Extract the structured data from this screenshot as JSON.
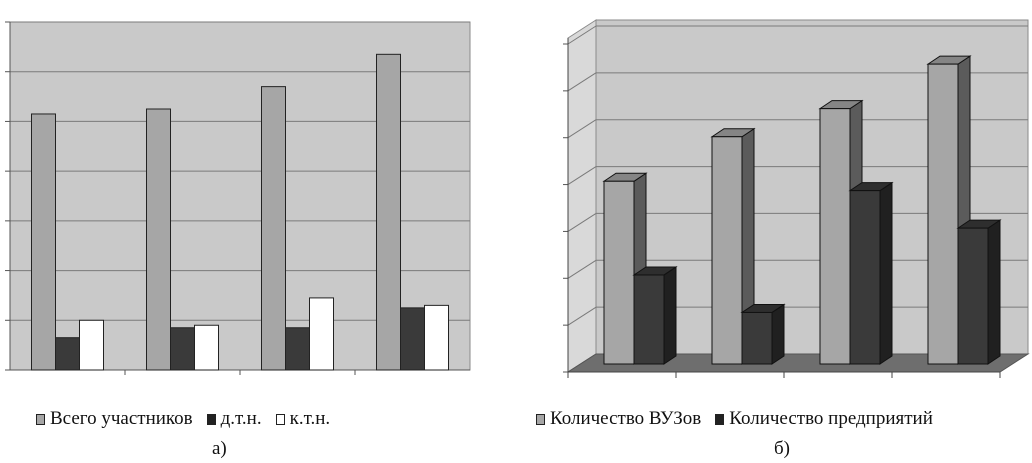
{
  "colors": {
    "plot_bg": "#c9c9c9",
    "floor": "#6e6e6e",
    "grid": "#7a7a7a",
    "series_light": "#a6a6a6",
    "series_dark": "#3a3a3a",
    "series_white": "#ffffff"
  },
  "chart_data": [
    {
      "type": "bar",
      "panel": "a)",
      "categories": [
        "",
        "",
        "",
        ""
      ],
      "ylim": [
        0,
        7
      ],
      "grid": true,
      "legend_position": "bottom",
      "series": [
        {
          "name": "Всего участников",
          "color": "#a6a6a6",
          "values": [
            5.15,
            5.25,
            5.7,
            6.35
          ]
        },
        {
          "name": "д.т.н.",
          "color": "#3a3a3a",
          "values": [
            0.65,
            0.85,
            0.85,
            1.25
          ]
        },
        {
          "name": "к.т.н.",
          "color": "#ffffff",
          "values": [
            1.0,
            0.9,
            1.45,
            1.3
          ]
        }
      ]
    },
    {
      "type": "bar",
      "style": "3d",
      "panel": "б)",
      "categories": [
        "",
        "",
        "",
        ""
      ],
      "ylim": [
        0,
        7
      ],
      "grid": true,
      "legend_position": "bottom",
      "series": [
        {
          "name": "Количество ВУЗов",
          "color": "#a6a6a6",
          "values": [
            3.9,
            4.85,
            5.45,
            6.4
          ]
        },
        {
          "name": "Количество предприятий",
          "color": "#3a3a3a",
          "values": [
            1.9,
            1.1,
            3.7,
            2.9
          ]
        }
      ]
    }
  ],
  "legend_a": {
    "items": [
      {
        "label": "Всего участников",
        "color": "#a6a6a6"
      },
      {
        "label": "д.т.н.",
        "color": "#3a3a3a"
      },
      {
        "label": "к.т.н.",
        "color": "#ffffff"
      }
    ]
  },
  "legend_b": {
    "items": [
      {
        "label": "Количество ВУЗов",
        "color": "#a6a6a6"
      },
      {
        "label": "Количество предприятий",
        "color": "#3a3a3a"
      }
    ]
  },
  "captions": {
    "a": "а)",
    "b": "б)"
  }
}
